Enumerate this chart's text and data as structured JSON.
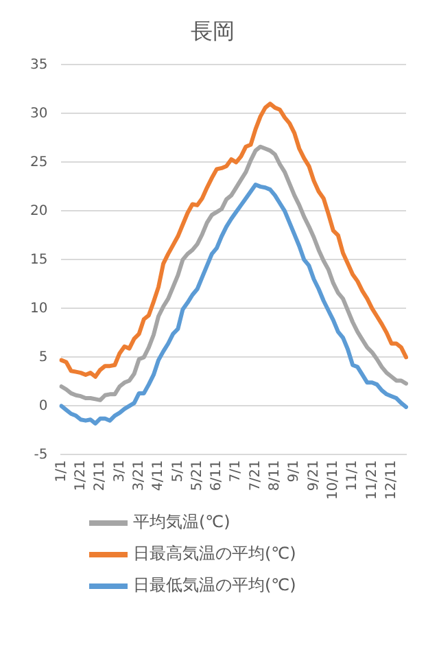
{
  "chart_data": {
    "type": "line",
    "title": "長岡",
    "categories": [
      "1/1",
      null,
      null,
      null,
      "1/21",
      null,
      null,
      null,
      "2/11",
      null,
      null,
      null,
      "3/1",
      null,
      null,
      null,
      "3/21",
      null,
      null,
      null,
      "4/11",
      null,
      null,
      null,
      "5/1",
      null,
      null,
      null,
      "5/21",
      null,
      null,
      null,
      "6/11",
      null,
      null,
      null,
      "7/1",
      null,
      null,
      null,
      "7/21",
      null,
      null,
      null,
      "8/11",
      null,
      null,
      null,
      "9/1",
      null,
      null,
      null,
      "9/21",
      null,
      null,
      null,
      "10/11",
      null,
      null,
      null,
      "11/1",
      null,
      null,
      null,
      "11/21",
      null,
      null,
      null,
      "12/11",
      null,
      null,
      null
    ],
    "series": [
      {
        "name": "平均気温(℃)",
        "color": "#a5a5a5",
        "values": [
          2.0,
          1.7,
          1.3,
          1.1,
          1.0,
          0.8,
          0.8,
          0.7,
          0.6,
          1.1,
          1.2,
          1.2,
          2.0,
          2.4,
          2.6,
          3.3,
          4.8,
          5.0,
          6.0,
          7.3,
          9.2,
          10.2,
          11.0,
          12.2,
          13.4,
          15.0,
          15.6,
          16.0,
          16.6,
          17.6,
          18.8,
          19.6,
          19.9,
          20.2,
          21.2,
          21.6,
          22.4,
          23.2,
          24.0,
          25.2,
          26.2,
          26.6,
          26.4,
          26.2,
          25.8,
          24.8,
          24.0,
          22.8,
          21.6,
          20.6,
          19.4,
          18.4,
          17.3,
          16.0,
          14.9,
          14.0,
          12.6,
          11.6,
          11.0,
          9.8,
          8.6,
          7.6,
          6.8,
          6.0,
          5.5,
          4.8,
          4.0,
          3.4,
          3.0,
          2.6,
          2.6,
          2.3
        ]
      },
      {
        "name": "日最高気温の平均(℃)",
        "color": "#ed7d31",
        "values": [
          4.7,
          4.5,
          3.6,
          3.5,
          3.4,
          3.2,
          3.4,
          3.0,
          3.7,
          4.1,
          4.1,
          4.2,
          5.4,
          6.1,
          5.9,
          6.9,
          7.4,
          8.9,
          9.3,
          10.7,
          12.2,
          14.6,
          15.6,
          16.5,
          17.4,
          18.6,
          19.8,
          20.7,
          20.6,
          21.3,
          22.4,
          23.4,
          24.3,
          24.4,
          24.6,
          25.3,
          25.0,
          25.6,
          26.6,
          26.8,
          28.4,
          29.7,
          30.6,
          31.0,
          30.6,
          30.4,
          29.6,
          29.0,
          28.0,
          26.4,
          25.4,
          24.6,
          23.1,
          22.0,
          21.3,
          19.7,
          18.0,
          17.5,
          15.7,
          14.6,
          13.5,
          12.8,
          11.8,
          11.0,
          10.0,
          9.2,
          8.4,
          7.5,
          6.4,
          6.4,
          6.0,
          5.0
        ]
      },
      {
        "name": "日最低気温の平均(℃)",
        "color": "#5b9bd5",
        "values": [
          0.0,
          -0.4,
          -0.8,
          -1.0,
          -1.4,
          -1.5,
          -1.4,
          -1.8,
          -1.3,
          -1.3,
          -1.5,
          -1.0,
          -0.7,
          -0.3,
          0.0,
          0.3,
          1.3,
          1.3,
          2.2,
          3.2,
          4.7,
          5.6,
          6.4,
          7.4,
          7.9,
          9.9,
          10.6,
          11.4,
          12.0,
          13.2,
          14.4,
          15.6,
          16.2,
          17.4,
          18.4,
          19.2,
          19.9,
          20.6,
          21.3,
          22.0,
          22.7,
          22.5,
          22.4,
          22.2,
          21.6,
          20.8,
          20.0,
          18.8,
          17.6,
          16.4,
          15.0,
          14.4,
          13.0,
          12.0,
          10.8,
          9.8,
          8.8,
          7.6,
          7.0,
          5.8,
          4.2,
          4.0,
          3.2,
          2.4,
          2.4,
          2.2,
          1.6,
          1.2,
          1.0,
          0.8,
          0.3,
          -0.1
        ]
      }
    ],
    "ylim": [
      -5,
      35
    ],
    "yticks": [
      -5,
      0,
      5,
      10,
      15,
      20,
      25,
      30,
      35
    ],
    "grid": "y",
    "legend": "bottom",
    "marker": "none",
    "line_style": "solid"
  }
}
